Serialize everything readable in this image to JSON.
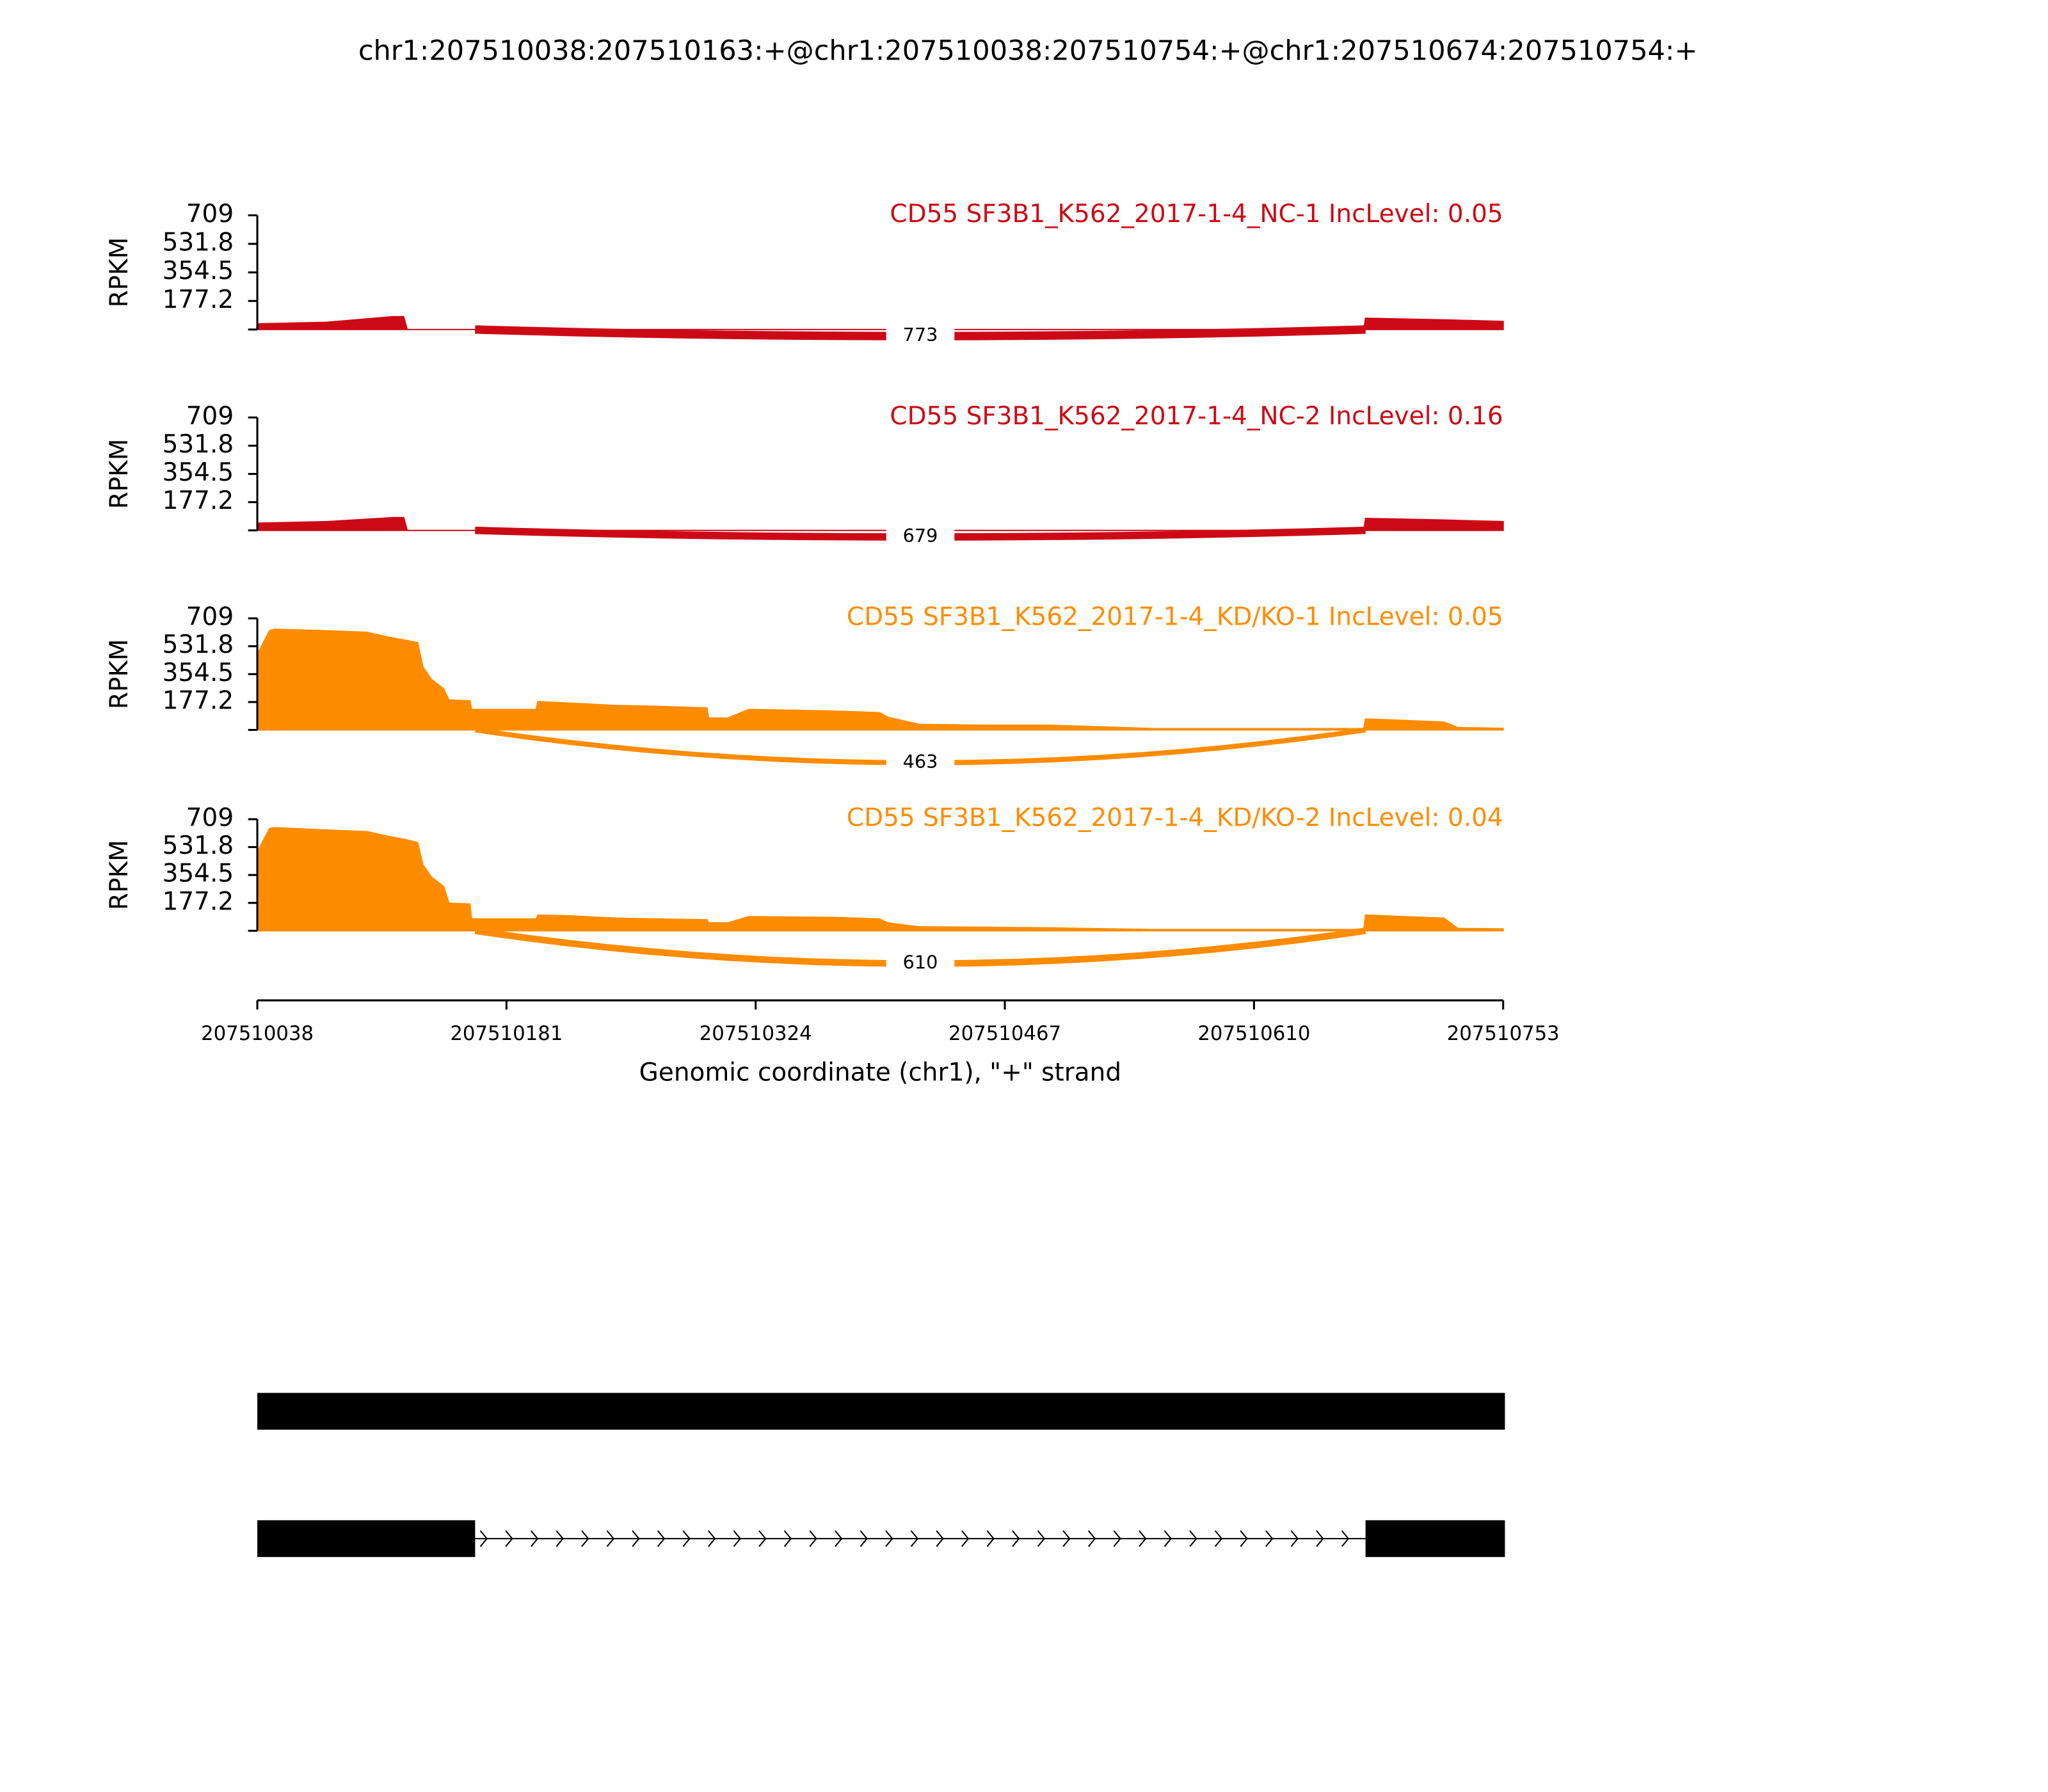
{
  "title": "chr1:207510038:207510163:+@chr1:207510038:207510754:+@chr1:207510674:207510754:+",
  "chart_data": [
    {
      "type": "sashimi",
      "title": "CD55 SF3B1_K562_2017-1-4_NC-1 IncLevel: 0.05",
      "ylabel": "RPKM",
      "color": "#cc0a16",
      "xlim": [
        207510038,
        207510753
      ],
      "ylim": [
        0,
        709
      ],
      "yticks": [
        177.2,
        354.5,
        531.8,
        709
      ],
      "x": [
        207510038,
        207510078,
        207510116,
        207510122,
        207510124,
        207510673,
        207510674,
        207510719,
        207510753
      ],
      "values": [
        35,
        45,
        80,
        80,
        0,
        0,
        70,
        60,
        50
      ],
      "junctions": [
        {
          "start": 207510163,
          "end": 207510674,
          "count": 773
        }
      ]
    },
    {
      "type": "sashimi",
      "title": "CD55 SF3B1_K562_2017-1-4_NC-2 IncLevel: 0.16",
      "ylabel": "RPKM",
      "color": "#cc0a16",
      "xlim": [
        207510038,
        207510753
      ],
      "ylim": [
        0,
        709
      ],
      "yticks": [
        177.2,
        354.5,
        531.8,
        709
      ],
      "x": [
        207510038,
        207510078,
        207510116,
        207510122,
        207510124,
        207510673,
        207510674,
        207510719,
        207510753
      ],
      "values": [
        45,
        55,
        80,
        80,
        0,
        0,
        75,
        65,
        55
      ],
      "junctions": [
        {
          "start": 207510163,
          "end": 207510674,
          "count": 679
        }
      ]
    },
    {
      "type": "sashimi",
      "title": "CD55 SF3B1_K562_2017-1-4_KD/KO-1 IncLevel: 0.05",
      "ylabel": "RPKM",
      "color": "#ff8c00",
      "xlim": [
        207510038,
        207510753
      ],
      "ylim": [
        0,
        709
      ],
      "yticks": [
        177.2,
        354.5,
        531.8,
        709
      ],
      "x": [
        207510038,
        207510045,
        207510048,
        207510078,
        207510101,
        207510113,
        207510123,
        207510130,
        207510133,
        207510138,
        207510145,
        207510148,
        207510160,
        207510161,
        207510198,
        207510199,
        207510218,
        207510244,
        207510268,
        207510296,
        207510297,
        207510308,
        207510320,
        207510368,
        207510395,
        207510400,
        207510418,
        207510458,
        207510493,
        207510553,
        207510670,
        207510673,
        207510674,
        207510719,
        207510727,
        207510753
      ],
      "values": [
        480,
        630,
        640,
        630,
        620,
        590,
        570,
        555,
        400,
        320,
        260,
        190,
        185,
        130,
        130,
        180,
        170,
        155,
        150,
        140,
        75,
        75,
        130,
        120,
        110,
        80,
        35,
        30,
        30,
        8,
        8,
        8,
        70,
        50,
        15,
        10
      ],
      "junctions": [
        {
          "start": 207510163,
          "end": 207510674,
          "count": 463
        }
      ]
    },
    {
      "type": "sashimi",
      "title": "CD55 SF3B1_K562_2017-1-4_KD/KO-2 IncLevel: 0.04",
      "ylabel": "RPKM",
      "color": "#ff8c00",
      "xlim": [
        207510038,
        207510753
      ],
      "ylim": [
        0,
        709
      ],
      "yticks": [
        177.2,
        354.5,
        531.8,
        709
      ],
      "xticks": [
        207510038,
        207510181,
        207510324,
        207510467,
        207510610,
        207510753
      ],
      "xlabel": "Genomic coordinate (chr1), \"+\" strand",
      "x": [
        207510038,
        207510045,
        207510048,
        207510078,
        207510101,
        207510113,
        207510123,
        207510130,
        207510133,
        207510138,
        207510145,
        207510148,
        207510160,
        207510161,
        207510198,
        207510199,
        207510218,
        207510244,
        207510268,
        207510296,
        207510297,
        207510308,
        207510320,
        207510368,
        207510395,
        207510400,
        207510418,
        207510458,
        207510493,
        207510553,
        207510670,
        207510673,
        207510674,
        207510719,
        207510727,
        207510753
      ],
      "values": [
        500,
        650,
        655,
        640,
        630,
        600,
        580,
        560,
        420,
        340,
        280,
        175,
        170,
        75,
        75,
        100,
        95,
        80,
        75,
        70,
        50,
        50,
        90,
        85,
        75,
        50,
        25,
        22,
        18,
        8,
        8,
        8,
        100,
        80,
        15,
        12
      ],
      "junctions": [
        {
          "start": 207510163,
          "end": 207510674,
          "count": 610
        }
      ]
    },
    {
      "type": "gene_models",
      "xlim": [
        207510038,
        207510753
      ],
      "transcripts": [
        {
          "exons": [
            [
              207510038,
              207510754
            ]
          ]
        },
        {
          "exons": [
            [
              207510038,
              207510163
            ],
            [
              207510674,
              207510754
            ]
          ]
        }
      ]
    }
  ]
}
